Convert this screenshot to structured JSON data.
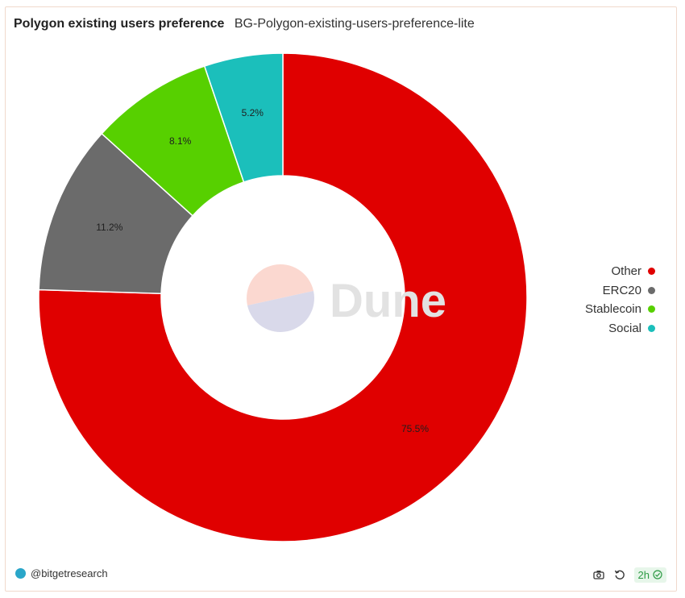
{
  "header": {
    "title": "Polygon existing users preference",
    "subtitle": "BG-Polygon-existing-users-preference-lite"
  },
  "watermark": {
    "text": "Dune"
  },
  "chart_data": {
    "type": "pie",
    "donut": true,
    "title": "Polygon existing users preference",
    "slices": [
      {
        "label": "Other",
        "value": 75.5,
        "display": "75.5%",
        "color": "#e00000"
      },
      {
        "label": "ERC20",
        "value": 11.2,
        "display": "11.2%",
        "color": "#6b6b6b"
      },
      {
        "label": "Stablecoin",
        "value": 8.1,
        "display": "8.1%",
        "color": "#57d000"
      },
      {
        "label": "Social",
        "value": 5.2,
        "display": "5.2%",
        "color": "#1bbfbb"
      }
    ],
    "legend_position": "right"
  },
  "footer": {
    "author": "@bitgetresearch",
    "refresh_label": "2h"
  }
}
